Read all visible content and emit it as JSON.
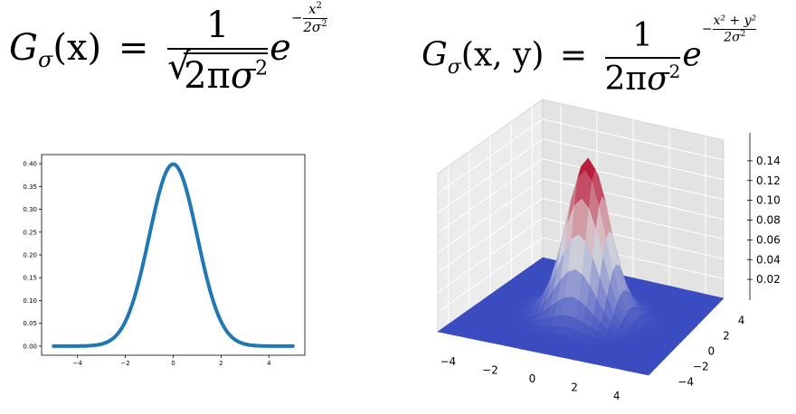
{
  "formula_1d": {
    "lhs_G": "G",
    "lhs_sub": "σ",
    "lhs_args": "(x)",
    "eq": "=",
    "numerator": "1",
    "den_const": "2π",
    "den_var": "σ",
    "den_exp": "2",
    "exp_base": "e",
    "exp_sign": "−",
    "exp_num": "x",
    "exp_num_pow": "2",
    "exp_den": "2σ",
    "exp_den_pow": "2"
  },
  "formula_2d": {
    "lhs_G": "G",
    "lhs_sub": "σ",
    "lhs_args": "(x, y)",
    "eq": "=",
    "numerator": "1",
    "den_const": "2π",
    "den_var": "σ",
    "den_exp": "2",
    "exp_base": "e",
    "exp_sign": "−",
    "exp_num": "x² + y²",
    "exp_den": "2σ",
    "exp_den_pow": "2"
  },
  "chart_data": [
    {
      "type": "line",
      "function": "normal_pdf",
      "sigma": 1,
      "x_range": [
        -5,
        5
      ],
      "xlim": [
        -5.5,
        5.5
      ],
      "ylim": [
        -0.02,
        0.42
      ],
      "xticks": [
        -4,
        -2,
        0,
        2,
        4
      ],
      "xtick_labels": [
        "−4",
        "−2",
        "0",
        "2",
        "4"
      ],
      "yticks": [
        0.0,
        0.05,
        0.1,
        0.15,
        0.2,
        0.25,
        0.3,
        0.35,
        0.4
      ],
      "ytick_labels": [
        "0.00",
        "0.05",
        "0.10",
        "0.15",
        "0.20",
        "0.25",
        "0.30",
        "0.35",
        "0.40"
      ],
      "x": [
        -5,
        -4,
        -3,
        -2.5,
        -2,
        -1.5,
        -1,
        -0.5,
        0,
        0.5,
        1,
        1.5,
        2,
        2.5,
        3,
        4,
        5
      ],
      "y": [
        0.0,
        0.0001,
        0.0044,
        0.0175,
        0.054,
        0.1295,
        0.242,
        0.3521,
        0.3989,
        0.3521,
        0.242,
        0.1295,
        0.054,
        0.0175,
        0.0044,
        0.0001,
        0.0
      ],
      "series_color": "#1f77b4",
      "grid": false
    },
    {
      "type": "surface",
      "function": "bivariate_normal_pdf",
      "sigma": 1,
      "x_range": [
        -5,
        5
      ],
      "y_range": [
        -5,
        5
      ],
      "peak": 0.159,
      "colormap": "coolwarm",
      "colormap_low": "#3b4cc0",
      "colormap_mid": "#dddddd",
      "colormap_high": "#b40426",
      "xticks": [
        -4,
        -2,
        0,
        2,
        4
      ],
      "xtick_labels": [
        "−4",
        "−2",
        "0",
        "2",
        "4"
      ],
      "yticks": [
        -4,
        -2,
        0,
        2,
        4
      ],
      "ytick_labels": [
        "−4",
        "−2",
        "0",
        "2",
        "4"
      ],
      "zticks": [
        0.02,
        0.04,
        0.06,
        0.08,
        0.1,
        0.12,
        0.14
      ],
      "ztick_labels": [
        "0.02",
        "0.04",
        "0.06",
        "0.08",
        "0.10",
        "0.12",
        "0.14"
      ],
      "grid": true
    }
  ]
}
